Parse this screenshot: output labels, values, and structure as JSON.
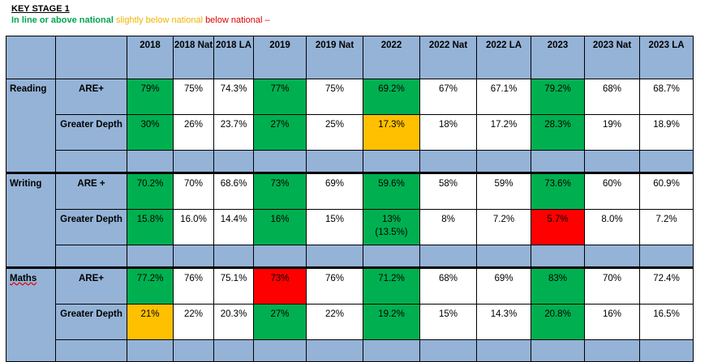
{
  "title": "KEY STAGE 1",
  "legend": {
    "green": "In line or above national",
    "yellow": "slightly below national",
    "red": "below national –"
  },
  "headers": [
    "2018",
    "2018 Nat",
    "2018 LA",
    "2019",
    "2019 Nat",
    "2022",
    "2022 Nat",
    "2022 LA",
    "2023",
    "2023 Nat",
    "2023 LA"
  ],
  "subjects": [
    {
      "name": "Reading",
      "rows": [
        {
          "metric": "ARE+",
          "cells": [
            {
              "v": "79%",
              "c": "green"
            },
            {
              "v": "75%",
              "c": "white"
            },
            {
              "v": "74.3%",
              "c": "white"
            },
            {
              "v": "77%",
              "c": "green"
            },
            {
              "v": "75%",
              "c": "white"
            },
            {
              "v": "69.2%",
              "c": "green"
            },
            {
              "v": "67%",
              "c": "white"
            },
            {
              "v": "67.1%",
              "c": "white"
            },
            {
              "v": "79.2%",
              "c": "green"
            },
            {
              "v": "68%",
              "c": "white"
            },
            {
              "v": "68.7%",
              "c": "white"
            }
          ]
        },
        {
          "metric": "Greater Depth",
          "cells": [
            {
              "v": "30%",
              "c": "green"
            },
            {
              "v": "26%",
              "c": "white"
            },
            {
              "v": "23.7%",
              "c": "white"
            },
            {
              "v": "27%",
              "c": "green"
            },
            {
              "v": "25%",
              "c": "white"
            },
            {
              "v": "17.3%",
              "c": "yellow"
            },
            {
              "v": "18%",
              "c": "white"
            },
            {
              "v": "17.2%",
              "c": "white"
            },
            {
              "v": "28.3%",
              "c": "green"
            },
            {
              "v": "19%",
              "c": "white"
            },
            {
              "v": "18.9%",
              "c": "white"
            }
          ]
        }
      ]
    },
    {
      "name": "Writing",
      "rows": [
        {
          "metric": "ARE +",
          "cells": [
            {
              "v": "70.2%",
              "c": "green"
            },
            {
              "v": "70%",
              "c": "white"
            },
            {
              "v": "68.6%",
              "c": "white"
            },
            {
              "v": "73%",
              "c": "green"
            },
            {
              "v": "69%",
              "c": "white"
            },
            {
              "v": "59.6%",
              "c": "green"
            },
            {
              "v": "58%",
              "c": "white"
            },
            {
              "v": "59%",
              "c": "white"
            },
            {
              "v": "73.6%",
              "c": "green"
            },
            {
              "v": "60%",
              "c": "white"
            },
            {
              "v": "60.9%",
              "c": "white"
            }
          ]
        },
        {
          "metric": "Greater Depth",
          "cells": [
            {
              "v": "15.8%",
              "c": "green"
            },
            {
              "v": "16.0%",
              "c": "white"
            },
            {
              "v": "14.4%",
              "c": "white"
            },
            {
              "v": "16%",
              "c": "green"
            },
            {
              "v": "15%",
              "c": "white"
            },
            {
              "v": "13%",
              "v2": "(13.5%)",
              "c": "green"
            },
            {
              "v": "8%",
              "c": "white"
            },
            {
              "v": "7.2%",
              "c": "white"
            },
            {
              "v": "5.7%",
              "c": "red"
            },
            {
              "v": "8.0%",
              "c": "white"
            },
            {
              "v": "7.2%",
              "c": "white"
            }
          ]
        }
      ]
    },
    {
      "name": "Maths",
      "rows": [
        {
          "metric": "ARE+",
          "cells": [
            {
              "v": "77.2%",
              "c": "green"
            },
            {
              "v": "76%",
              "c": "white"
            },
            {
              "v": "75.1%",
              "c": "white"
            },
            {
              "v": "73%",
              "c": "red"
            },
            {
              "v": "76%",
              "c": "white"
            },
            {
              "v": "71.2%",
              "c": "green"
            },
            {
              "v": "68%",
              "c": "white"
            },
            {
              "v": "69%",
              "c": "white"
            },
            {
              "v": "83%",
              "c": "green"
            },
            {
              "v": "70%",
              "c": "white"
            },
            {
              "v": "72.4%",
              "c": "white"
            }
          ]
        },
        {
          "metric": "Greater Depth",
          "cells": [
            {
              "v": "21%",
              "c": "yellow"
            },
            {
              "v": "22%",
              "c": "white"
            },
            {
              "v": "20.3%",
              "c": "white"
            },
            {
              "v": "27%",
              "c": "green"
            },
            {
              "v": "22%",
              "c": "white"
            },
            {
              "v": "19.2%",
              "c": "green"
            },
            {
              "v": "15%",
              "c": "white"
            },
            {
              "v": "14.3%",
              "c": "white"
            },
            {
              "v": "20.8%",
              "c": "green"
            },
            {
              "v": "16%",
              "c": "white"
            },
            {
              "v": "16.5%",
              "c": "white"
            }
          ]
        }
      ]
    }
  ],
  "colors": {
    "green": "#00b050",
    "yellow": "#ffc000",
    "red": "#ff0000",
    "header_blue": "#95b3d7"
  }
}
